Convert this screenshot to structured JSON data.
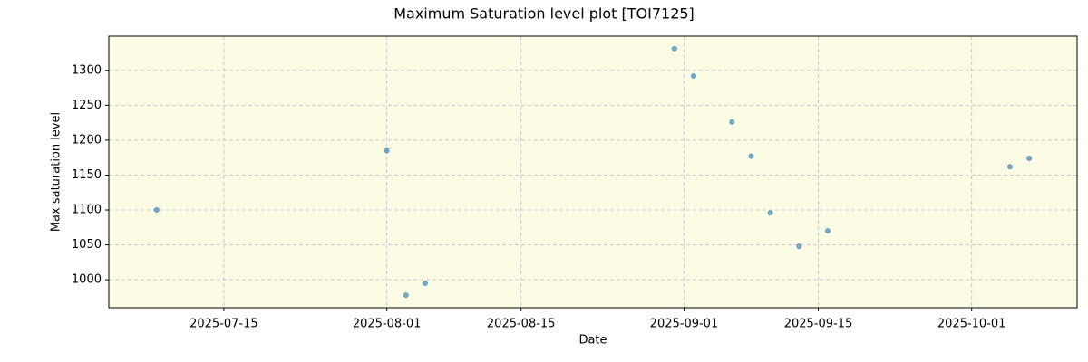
{
  "chart_data": {
    "type": "scatter",
    "title": "Maximum Saturation level plot [TOI7125]",
    "x_label": "Date",
    "y_label": "Max saturation level",
    "x": [
      "2025-07-08",
      "2025-08-01",
      "2025-08-03",
      "2025-08-05",
      "2025-08-31",
      "2025-09-02",
      "2025-09-06",
      "2025-09-08",
      "2025-09-10",
      "2025-09-13",
      "2025-09-16",
      "2025-10-05",
      "2025-10-07"
    ],
    "values": [
      1100,
      1185,
      978,
      995,
      1331,
      1292,
      1226,
      1177,
      1096,
      1048,
      1070,
      1162,
      1174
    ],
    "color": "#1f77b4",
    "xlim": [
      "2025-07-03",
      "2025-10-12"
    ],
    "xticks": [
      "2025-07-15",
      "2025-08-01",
      "2025-08-15",
      "2025-09-01",
      "2025-09-15",
      "2025-10-01"
    ],
    "ylim": [
      960,
      1349
    ],
    "yticks": [
      1000,
      1050,
      1100,
      1150,
      1200,
      1250,
      1300
    ],
    "grid": true,
    "background": "#fcfce4"
  }
}
